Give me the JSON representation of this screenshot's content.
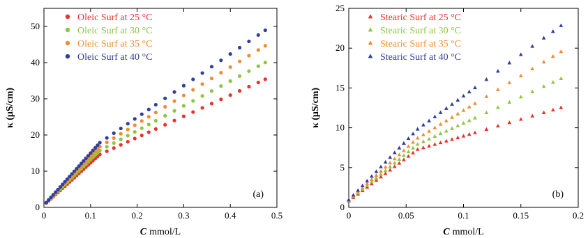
{
  "chart_data": [
    {
      "type": "scatter",
      "panel_label": "(a)",
      "xlabel_symbol": "C",
      "xlabel_unit": "mmol/L",
      "ylabel": "κ (μS/cm)",
      "xlim": [
        0,
        0.5
      ],
      "ylim": [
        0,
        55
      ],
      "xticks": [
        0,
        0.1,
        0.2,
        0.3,
        0.4,
        0.5
      ],
      "xtick_labels": [
        "0",
        "0.1",
        "0.2",
        "0.3",
        "0.4",
        "0.5"
      ],
      "yticks": [
        0,
        10,
        20,
        30,
        40,
        50
      ],
      "ytick_labels": [
        "0",
        "10",
        "20",
        "30",
        "40",
        "50"
      ],
      "marker": "circle",
      "legend_position": "top-left",
      "grid": false,
      "series": [
        {
          "name": "Oleic Surf at 25 °C",
          "color": "#e8322a",
          "slope_low": 117,
          "slope_high": 58.5
        },
        {
          "name": "Oleic Surf at 30 °C",
          "color": "#8dc63f",
          "slope_low": 126,
          "slope_high": 68.5
        },
        {
          "name": "Oleic Surf at 35 °C",
          "color": "#f28c30",
          "slope_low": 135,
          "slope_high": 78.5
        },
        {
          "name": "Oleic Surf at 40 °C",
          "color": "#2e3f9e",
          "slope_low": 144,
          "slope_high": 87.5
        }
      ],
      "x": [
        0.005,
        0.01,
        0.015,
        0.02,
        0.025,
        0.03,
        0.035,
        0.04,
        0.045,
        0.05,
        0.055,
        0.06,
        0.065,
        0.07,
        0.075,
        0.08,
        0.085,
        0.09,
        0.095,
        0.1,
        0.105,
        0.11,
        0.115,
        0.12,
        0.135,
        0.15,
        0.165,
        0.18,
        0.195,
        0.21,
        0.225,
        0.24,
        0.26,
        0.28,
        0.3,
        0.32,
        0.34,
        0.36,
        0.38,
        0.4,
        0.42,
        0.44,
        0.46,
        0.475
      ],
      "y_intercept": 0.6,
      "break_x": 0.12
    },
    {
      "type": "scatter",
      "panel_label": "(b)",
      "xlabel_symbol": "C",
      "xlabel_unit": "mmol/L",
      "ylabel": "κ (μS/cm)",
      "xlim": [
        0,
        0.2
      ],
      "ylim": [
        0,
        25
      ],
      "xticks": [
        0,
        0.05,
        0.1,
        0.15,
        0.2
      ],
      "xtick_labels": [
        "0",
        "0.05",
        "0.1",
        "0.15",
        "0.2"
      ],
      "yticks": [
        0,
        5,
        10,
        15,
        20,
        25
      ],
      "ytick_labels": [
        "0",
        "5",
        "10",
        "15",
        "20",
        "25"
      ],
      "marker": "triangle",
      "legend_position": "top-left",
      "grid": false,
      "series": [
        {
          "name": "Stearic Surf at 25 °C",
          "color": "#e8322a",
          "slope_low": 108,
          "slope_high": 42,
          "intercept": 0.8
        },
        {
          "name": "Stearic Surf at 30 °C",
          "color": "#8dc63f",
          "slope_low": 118,
          "slope_high": 66,
          "intercept": 0.85
        },
        {
          "name": "Stearic Surf at 35 °C",
          "color": "#f28c30",
          "slope_low": 130,
          "slope_high": 87,
          "intercept": 0.9
        },
        {
          "name": "Stearic Surf at 40 °C",
          "color": "#2e3f9e",
          "slope_low": 148,
          "slope_high": 104,
          "intercept": 0.95
        }
      ],
      "x": [
        0.0,
        0.004,
        0.008,
        0.012,
        0.016,
        0.02,
        0.024,
        0.028,
        0.032,
        0.036,
        0.04,
        0.044,
        0.048,
        0.052,
        0.056,
        0.06,
        0.065,
        0.07,
        0.075,
        0.08,
        0.085,
        0.09,
        0.095,
        0.1,
        0.105,
        0.11,
        0.12,
        0.13,
        0.14,
        0.15,
        0.16,
        0.17,
        0.178,
        0.185
      ],
      "break_x": 0.06
    }
  ]
}
